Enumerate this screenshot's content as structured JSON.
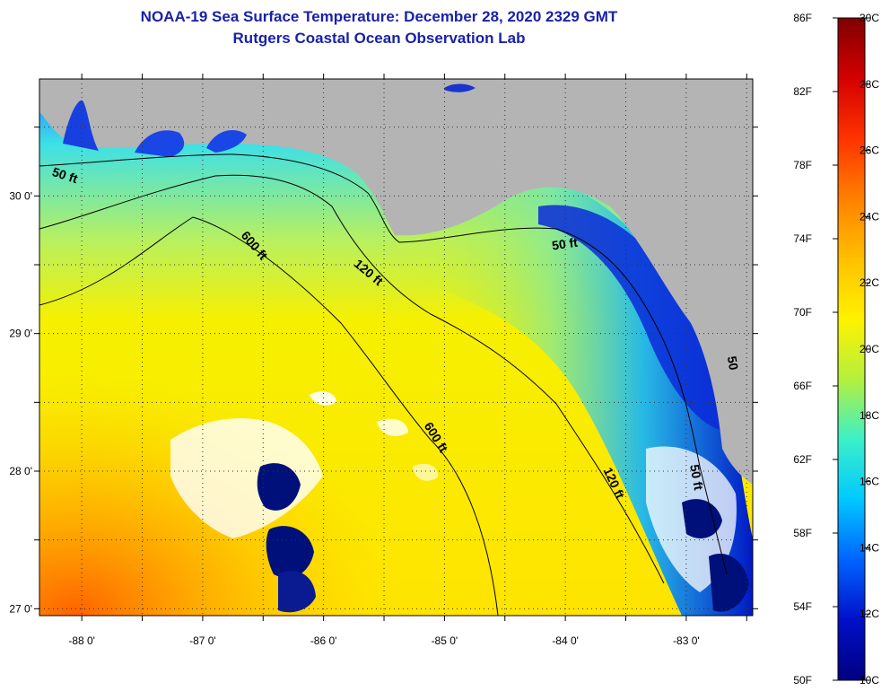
{
  "header": {
    "title": "NOAA-19 Sea Surface Temperature:  December 28, 2020 2329 GMT",
    "subtitle": "Rutgers Coastal Ocean Observation Lab"
  },
  "map": {
    "lon_range": [
      -88.35,
      -82.45
    ],
    "lat_range": [
      26.95,
      30.85
    ],
    "lon_ticks": [
      {
        "value": -88,
        "label": "-88 0'"
      },
      {
        "value": -87,
        "label": "-87 0'"
      },
      {
        "value": -86,
        "label": "-86 0'"
      },
      {
        "value": -85,
        "label": "-85 0'"
      },
      {
        "value": -84,
        "label": "-84 0'"
      },
      {
        "value": -83,
        "label": "-83 0'"
      }
    ],
    "lat_ticks": [
      {
        "value": 30,
        "label": "30 0'"
      },
      {
        "value": 29,
        "label": "29 0'"
      },
      {
        "value": 28,
        "label": "28 0'"
      },
      {
        "value": 27,
        "label": "27 0'"
      }
    ],
    "contour_labels": [
      {
        "text": "50 ft",
        "lon": -88.15,
        "lat": 30.12,
        "rotate": 18
      },
      {
        "text": "600 ft",
        "lon": -86.6,
        "lat": 29.62,
        "rotate": 50
      },
      {
        "text": "120 ft",
        "lon": -85.65,
        "lat": 29.42,
        "rotate": 40
      },
      {
        "text": "50 ft",
        "lon": -84.0,
        "lat": 29.62,
        "rotate": -8
      },
      {
        "text": "600 ft",
        "lon": -85.1,
        "lat": 28.23,
        "rotate": 58
      },
      {
        "text": "120 ft",
        "lon": -83.63,
        "lat": 27.9,
        "rotate": 65
      },
      {
        "text": "50 ft",
        "lon": -82.95,
        "lat": 27.95,
        "rotate": 80
      },
      {
        "text": "50",
        "lon": -82.65,
        "lat": 28.78,
        "rotate": 80
      }
    ],
    "land_color": "#b4b4b4",
    "cloud_color": "#ffffff"
  },
  "colorbar": {
    "fahrenheit": [
      "86F",
      "82F",
      "78F",
      "74F",
      "70F",
      "66F",
      "62F",
      "58F",
      "54F",
      "50F"
    ],
    "celsius": [
      "30C",
      "28C",
      "26C",
      "24C",
      "22C",
      "20C",
      "18C",
      "16C",
      "14C",
      "12C",
      "10C"
    ],
    "stops": [
      "#800000",
      "#d40000",
      "#ff3300",
      "#ff8000",
      "#ffc000",
      "#fff200",
      "#b4f03c",
      "#3cf0c8",
      "#00c8ff",
      "#0064ff",
      "#0010c8",
      "#000080"
    ]
  }
}
